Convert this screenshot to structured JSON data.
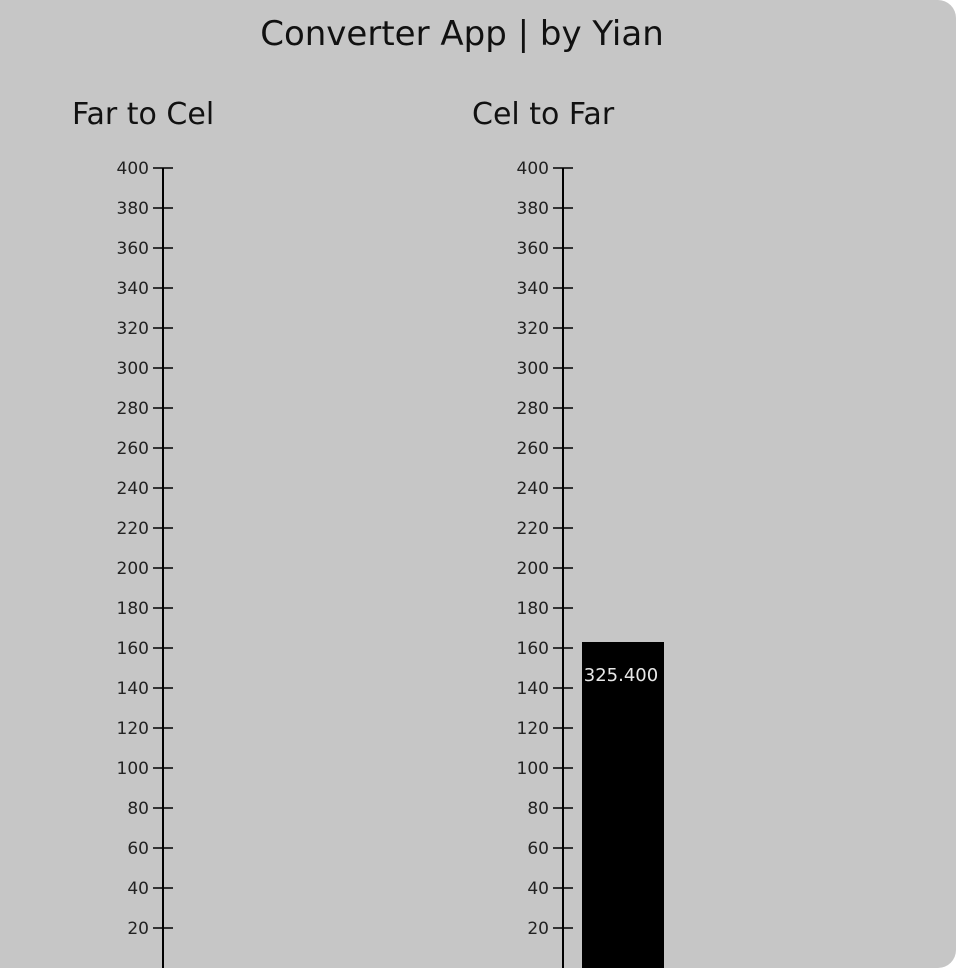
{
  "app": {
    "title": "Converter App | by Yian"
  },
  "panels": [
    {
      "id": "f2c",
      "title": "Far to Cel",
      "bar_value": null,
      "bar_label": ""
    },
    {
      "id": "c2f",
      "title": "Cel to Far",
      "bar_value": 163,
      "bar_label": "325.400"
    }
  ],
  "chart_data": {
    "type": "bar",
    "ticks": [
      20,
      40,
      60,
      80,
      100,
      120,
      140,
      160,
      180,
      200,
      220,
      240,
      260,
      280,
      300,
      320,
      340,
      360,
      380,
      400
    ],
    "ylim": [
      0,
      400
    ],
    "series": [
      {
        "name": "Cel to Far",
        "values": [
          163
        ],
        "label": "325.400"
      }
    ]
  },
  "colors": {
    "background": "#c6c6c6",
    "bar": "#000000",
    "bar_text": "#e8e8e8",
    "axis": "#000000"
  }
}
